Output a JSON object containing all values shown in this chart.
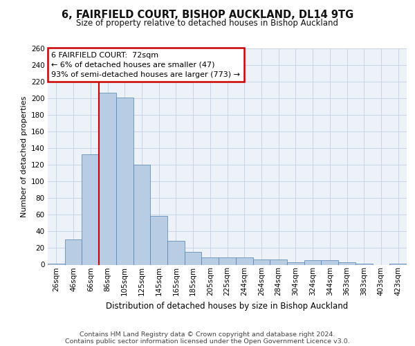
{
  "title1": "6, FAIRFIELD COURT, BISHOP AUCKLAND, DL14 9TG",
  "title2": "Size of property relative to detached houses in Bishop Auckland",
  "xlabel": "Distribution of detached houses by size in Bishop Auckland",
  "ylabel": "Number of detached properties",
  "annotation_line1": "6 FAIRFIELD COURT:  72sqm",
  "annotation_line2": "← 6% of detached houses are smaller (47)",
  "annotation_line3": "93% of semi-detached houses are larger (773) →",
  "categories": [
    "26sqm",
    "46sqm",
    "66sqm",
    "86sqm",
    "105sqm",
    "125sqm",
    "145sqm",
    "165sqm",
    "185sqm",
    "205sqm",
    "225sqm",
    "244sqm",
    "264sqm",
    "284sqm",
    "304sqm",
    "324sqm",
    "344sqm",
    "363sqm",
    "383sqm",
    "403sqm",
    "423sqm"
  ],
  "values": [
    1,
    30,
    133,
    207,
    201,
    120,
    59,
    29,
    15,
    9,
    9,
    9,
    6,
    6,
    3,
    5,
    5,
    3,
    1,
    0,
    1
  ],
  "bar_color": "#b8cce4",
  "bar_edge_color": "#5080b0",
  "red_line_x": 2.5,
  "grid_color": "#c8d4e8",
  "background_color": "#edf2f9",
  "annotation_box_color": "#ffffff",
  "annotation_box_edge": "#cc0000",
  "red_line_color": "#cc0000",
  "footer1": "Contains HM Land Registry data © Crown copyright and database right 2024.",
  "footer2": "Contains public sector information licensed under the Open Government Licence v3.0.",
  "ylim": [
    0,
    260
  ],
  "yticks": [
    0,
    20,
    40,
    60,
    80,
    100,
    120,
    140,
    160,
    180,
    200,
    220,
    240,
    260
  ]
}
